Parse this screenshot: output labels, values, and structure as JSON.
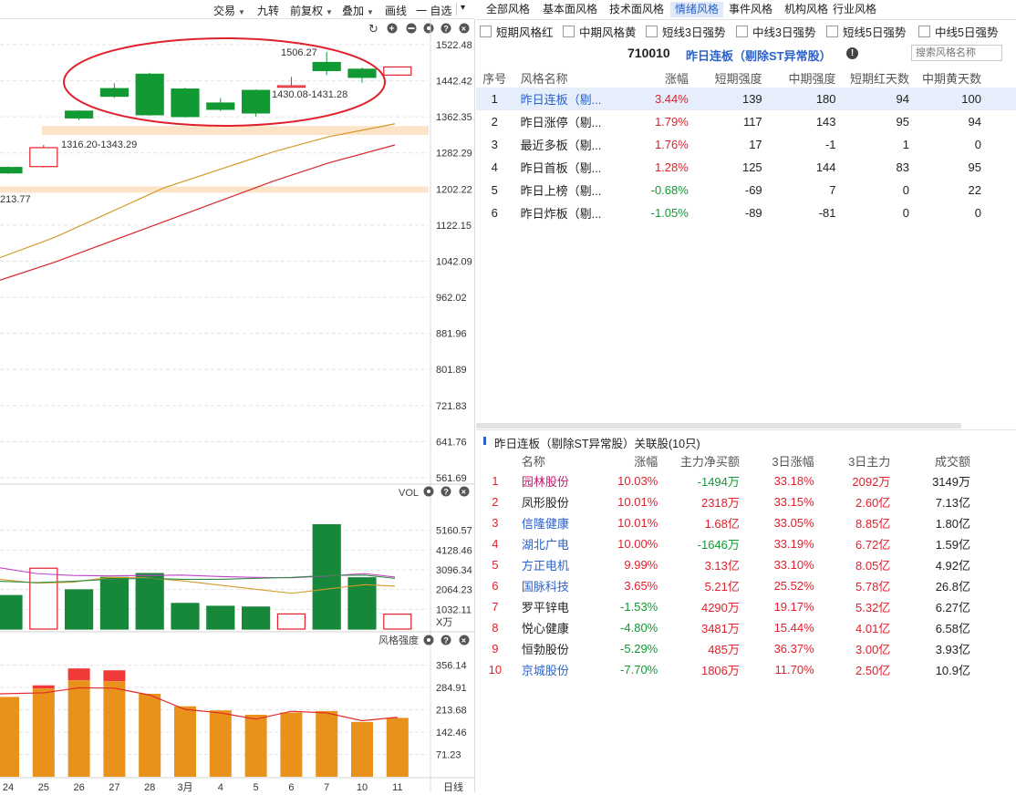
{
  "toolbar": {
    "items": [
      {
        "label": "交易",
        "caret": true
      },
      {
        "label": "九转",
        "caret": false
      },
      {
        "label": "前复权",
        "caret": true
      },
      {
        "label": "叠加",
        "caret": true
      },
      {
        "label": "画线",
        "caret": false
      },
      {
        "label": "一 自选",
        "caret": false
      }
    ],
    "collapse_icon": "▾"
  },
  "chart": {
    "price_axis": [
      "1522.48",
      "1442.42",
      "1362.35",
      "1282.29",
      "1202.22",
      "1122.15",
      "1042.09",
      "962.02",
      "881.96",
      "801.89",
      "721.83",
      "641.76",
      "561.69"
    ],
    "annotations": {
      "high": "1506.27",
      "range_a": "1430.08-1431.28",
      "range_b": "1316.20-1343.29",
      "low_left": "213.77"
    },
    "candles": [
      {
        "date": "24",
        "open": 1238,
        "close": 1250,
        "high": 1252,
        "low": 1236,
        "color": "green"
      },
      {
        "date": "25",
        "open": 1252,
        "close": 1294,
        "high": 1300,
        "low": 1250,
        "color": "red"
      },
      {
        "date": "26",
        "open": 1375,
        "close": 1360,
        "high": 1377,
        "low": 1355,
        "color": "green"
      },
      {
        "date": "27",
        "open": 1425,
        "close": 1408,
        "high": 1437,
        "low": 1404,
        "color": "green"
      },
      {
        "date": "28",
        "open": 1457,
        "close": 1367,
        "high": 1460,
        "low": 1365,
        "color": "green"
      },
      {
        "date": "3月",
        "open": 1424,
        "close": 1363,
        "high": 1427,
        "low": 1361,
        "color": "green"
      },
      {
        "date": "4",
        "open": 1393,
        "close": 1379,
        "high": 1404,
        "low": 1375,
        "color": "green"
      },
      {
        "date": "5",
        "open": 1421,
        "close": 1371,
        "high": 1423,
        "low": 1363,
        "color": "green"
      },
      {
        "date": "6",
        "open": 1430.08,
        "close": 1431.28,
        "high": 1451,
        "low": 1429,
        "color": "red"
      },
      {
        "date": "7",
        "open": 1483,
        "close": 1465,
        "high": 1506.27,
        "low": 1455,
        "color": "green"
      },
      {
        "date": "10",
        "open": 1468,
        "close": 1450,
        "high": 1472,
        "low": 1438,
        "color": "green"
      },
      {
        "date": "11",
        "open": 1455,
        "close": 1473,
        "high": 1474,
        "low": 1453,
        "color": "red"
      }
    ],
    "vol_label": "VOL",
    "vol_axis": [
      "5160.57",
      "4128.46",
      "3096.34",
      "2064.23",
      "1032.11"
    ],
    "vol_unit": "X万",
    "volumes": [
      1750,
      3180,
      2050,
      2700,
      2900,
      1340,
      1190,
      1150,
      790,
      5450,
      2680,
      780
    ],
    "style_label": "风格强度",
    "style_axis": [
      "356.14",
      "284.91",
      "213.68",
      "142.46",
      "71.23"
    ],
    "style_strength": [
      255,
      282,
      308,
      305,
      265,
      225,
      212,
      198,
      205,
      210,
      175,
      188
    ],
    "style_red_tops": [
      null,
      292,
      346,
      340,
      null,
      null,
      null,
      null,
      null,
      null,
      null,
      null
    ],
    "x_labels": [
      "24",
      "25",
      "26",
      "27",
      "28",
      "3月",
      "4",
      "5",
      "6",
      "7",
      "10",
      "11"
    ],
    "period_label": "日线"
  },
  "tabs": [
    "全部风格",
    "基本面风格",
    "技术面风格",
    "情绪风格",
    "事件风格",
    "机构风格",
    "行业风格"
  ],
  "active_tab": 3,
  "filters": [
    "短期风格红",
    "中期风格黄",
    "短线3日强势",
    "中线3日强势",
    "短线5日强势",
    "中线5日强势"
  ],
  "style_header": {
    "code": "710010",
    "title": "昨日连板（剔除ST异常股）",
    "search_placeholder": "搜索风格名称"
  },
  "style_table": {
    "columns": [
      "序号",
      "风格名称",
      "涨幅",
      "短期强度",
      "中期强度",
      "短期红天数",
      "中期黄天数"
    ],
    "rows": [
      {
        "idx": "1",
        "name": "昨日连板（剔...",
        "chg": "3.44%",
        "s": "139",
        "m": "180",
        "r": "94",
        "y": "100",
        "dir": "up"
      },
      {
        "idx": "2",
        "name": "昨日涨停（剔...",
        "chg": "1.79%",
        "s": "117",
        "m": "143",
        "r": "95",
        "y": "94",
        "dir": "up"
      },
      {
        "idx": "3",
        "name": "最近多板（剔...",
        "chg": "1.76%",
        "s": "17",
        "m": "-1",
        "r": "1",
        "y": "0",
        "dir": "up"
      },
      {
        "idx": "4",
        "name": "昨日首板（剔...",
        "chg": "1.28%",
        "s": "125",
        "m": "144",
        "r": "83",
        "y": "95",
        "dir": "up"
      },
      {
        "idx": "5",
        "name": "昨日上榜（剔...",
        "chg": "-0.68%",
        "s": "-69",
        "m": "7",
        "r": "0",
        "y": "22",
        "dir": "down"
      },
      {
        "idx": "6",
        "name": "昨日炸板（剔...",
        "chg": "-1.05%",
        "s": "-89",
        "m": "-81",
        "r": "0",
        "y": "0",
        "dir": "down"
      }
    ]
  },
  "related": {
    "title": "昨日连板（剔除ST异常股）关联股(10只)",
    "columns": [
      "名称",
      "涨幅",
      "主力净买额",
      "3日涨幅",
      "3日主力",
      "成交额"
    ],
    "rows": [
      {
        "idx": "1",
        "name": "园林股份",
        "nc": "magenta",
        "chg": "10.03%",
        "cc": "red",
        "net": "-1494万",
        "netc": "green",
        "d3": "33.18%",
        "d3c": "red",
        "m3": "2092万",
        "m3c": "red",
        "amt": "3149万"
      },
      {
        "idx": "2",
        "name": "凤形股份",
        "nc": "dark",
        "chg": "10.01%",
        "cc": "red",
        "net": "2318万",
        "netc": "red",
        "d3": "33.15%",
        "d3c": "red",
        "m3": "2.60亿",
        "m3c": "red",
        "amt": "7.13亿"
      },
      {
        "idx": "3",
        "name": "信隆健康",
        "nc": "blue",
        "chg": "10.01%",
        "cc": "red",
        "net": "1.68亿",
        "netc": "red",
        "d3": "33.05%",
        "d3c": "red",
        "m3": "8.85亿",
        "m3c": "red",
        "amt": "1.80亿"
      },
      {
        "idx": "4",
        "name": "湖北广电",
        "nc": "blue",
        "chg": "10.00%",
        "cc": "red",
        "net": "-1646万",
        "netc": "green",
        "d3": "33.19%",
        "d3c": "red",
        "m3": "6.72亿",
        "m3c": "red",
        "amt": "1.59亿"
      },
      {
        "idx": "5",
        "name": "方正电机",
        "nc": "blue",
        "chg": "9.99%",
        "cc": "red",
        "net": "3.13亿",
        "netc": "red",
        "d3": "33.10%",
        "d3c": "red",
        "m3": "8.05亿",
        "m3c": "red",
        "amt": "4.92亿"
      },
      {
        "idx": "6",
        "name": "国脉科技",
        "nc": "blue",
        "chg": "3.65%",
        "cc": "red",
        "net": "5.21亿",
        "netc": "red",
        "d3": "25.52%",
        "d3c": "red",
        "m3": "5.78亿",
        "m3c": "red",
        "amt": "26.8亿"
      },
      {
        "idx": "7",
        "name": "罗平锌电",
        "nc": "dark",
        "chg": "-1.53%",
        "cc": "green",
        "net": "4290万",
        "netc": "red",
        "d3": "19.17%",
        "d3c": "red",
        "m3": "5.32亿",
        "m3c": "red",
        "amt": "6.27亿"
      },
      {
        "idx": "8",
        "name": "悦心健康",
        "nc": "dark",
        "chg": "-4.80%",
        "cc": "green",
        "net": "3481万",
        "netc": "red",
        "d3": "15.44%",
        "d3c": "red",
        "m3": "4.01亿",
        "m3c": "red",
        "amt": "6.58亿"
      },
      {
        "idx": "9",
        "name": "恒勃股份",
        "nc": "dark",
        "chg": "-5.29%",
        "cc": "green",
        "net": "485万",
        "netc": "red",
        "d3": "36.37%",
        "d3c": "red",
        "m3": "3.00亿",
        "m3c": "red",
        "amt": "3.93亿"
      },
      {
        "idx": "10",
        "name": "京城股份",
        "nc": "blue",
        "chg": "-7.70%",
        "cc": "green",
        "net": "1806万",
        "netc": "red",
        "d3": "11.70%",
        "d3c": "red",
        "m3": "2.50亿",
        "m3c": "red",
        "amt": "10.9亿"
      }
    ]
  },
  "colors": {
    "up": "#e0202c",
    "down": "#119a33",
    "vol_green": "#17883a",
    "style_bar": "#e8921c",
    "ma_orange": "#d49a2a",
    "ma_red": "#d6262b",
    "zone": "#fde3c8",
    "ellipse": "#e0202c"
  }
}
